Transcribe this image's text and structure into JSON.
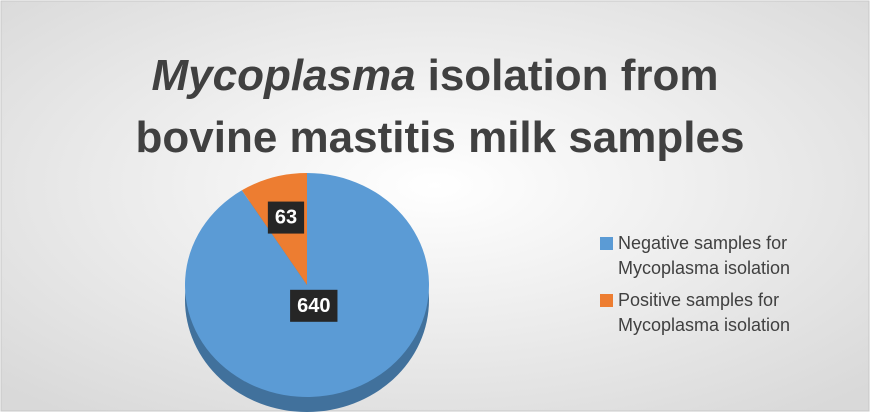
{
  "chart_data": {
    "type": "pie",
    "title": [
      "Mycoplasma",
      "isolation from",
      "bovine mastitis milk samples"
    ],
    "categories": [
      "Negative samples for Mycoplasma isolation",
      "Positive samples for Mycoplasma isolation"
    ],
    "values": [
      640,
      63
    ],
    "colors": [
      "#5b9bd5",
      "#ed7d31"
    ],
    "legend": "right"
  }
}
